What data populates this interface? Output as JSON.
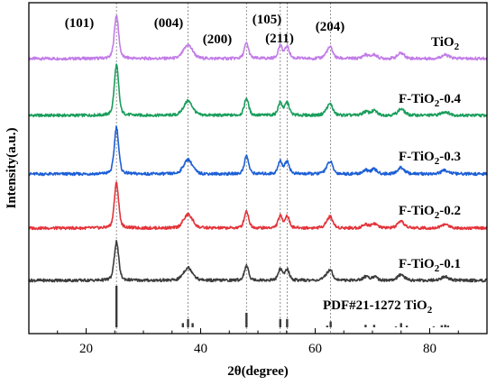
{
  "chart_data": {
    "type": "line",
    "xlabel": "2θ(degree)",
    "ylabel": "Intensity(a.u.)",
    "xlim": [
      10,
      90
    ],
    "xticks": [
      20,
      40,
      60,
      80
    ],
    "xtick_labels": [
      "20",
      "40",
      "60",
      "80"
    ],
    "y_ticks_shown": false,
    "grid": false,
    "peak_labels": [
      {
        "text": "(101)",
        "x": 25.3
      },
      {
        "text": "(004)",
        "x": 37.8
      },
      {
        "text": "(200)",
        "x": 48.0
      },
      {
        "text": "(105)",
        "x": 53.9
      },
      {
        "text": "(211)",
        "x": 55.1
      },
      {
        "text": "(204)",
        "x": 62.7
      }
    ],
    "reference_lines_x": [
      25.3,
      37.8,
      48.0,
      53.9,
      55.1,
      62.7
    ],
    "peaks_2theta": [
      25.3,
      37.0,
      37.8,
      38.6,
      48.0,
      53.9,
      55.1,
      62.1,
      62.7,
      68.8,
      70.3,
      75.0,
      82.7
    ],
    "series": [
      {
        "name": "TiO",
        "sub": "2",
        "suffix": "",
        "color": "#c27ce8",
        "peak_heights": [
          48,
          5,
          12,
          5,
          17,
          14,
          13,
          5,
          10,
          4,
          4,
          6,
          4
        ]
      },
      {
        "name": "F-TiO",
        "sub": "2",
        "suffix": "-0.4",
        "color": "#1a9e5c",
        "peak_heights": [
          56,
          5,
          13,
          5,
          19,
          14,
          14,
          5,
          10,
          4,
          5,
          7,
          4
        ]
      },
      {
        "name": "F-TiO",
        "sub": "2",
        "suffix": "-0.3",
        "color": "#1c5fd6",
        "peak_heights": [
          52,
          5,
          13,
          5,
          20,
          14,
          14,
          5,
          11,
          4,
          5,
          7,
          4
        ]
      },
      {
        "name": "F-TiO",
        "sub": "2",
        "suffix": "-0.2",
        "color": "#e3343a",
        "peak_heights": [
          50,
          5,
          12,
          5,
          19,
          13,
          13,
          5,
          10,
          4,
          5,
          7,
          4
        ]
      },
      {
        "name": "F-TiO",
        "sub": "2",
        "suffix": "-0.1",
        "color": "#3c3c3c",
        "peak_heights": [
          43,
          5,
          11,
          5,
          16,
          12,
          12,
          5,
          9,
          4,
          4,
          6,
          4
        ]
      }
    ],
    "reference_pattern": {
      "name": "PDF#21-1272 TiO",
      "sub": "2",
      "color": "#3a3a3a",
      "peaks": [
        {
          "x": 25.3,
          "h": 100
        },
        {
          "x": 36.9,
          "h": 10
        },
        {
          "x": 37.8,
          "h": 20
        },
        {
          "x": 38.6,
          "h": 10
        },
        {
          "x": 48.0,
          "h": 35
        },
        {
          "x": 53.9,
          "h": 20
        },
        {
          "x": 55.1,
          "h": 20
        },
        {
          "x": 62.1,
          "h": 4
        },
        {
          "x": 62.7,
          "h": 14
        },
        {
          "x": 68.8,
          "h": 6
        },
        {
          "x": 70.3,
          "h": 6
        },
        {
          "x": 74.1,
          "h": 2
        },
        {
          "x": 75.0,
          "h": 10
        },
        {
          "x": 76.0,
          "h": 4
        },
        {
          "x": 80.7,
          "h": 2
        },
        {
          "x": 82.1,
          "h": 5
        },
        {
          "x": 82.7,
          "h": 6
        },
        {
          "x": 83.2,
          "h": 4
        }
      ]
    }
  }
}
